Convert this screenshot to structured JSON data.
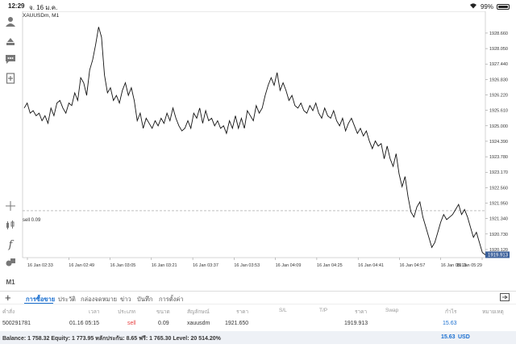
{
  "status_bar": {
    "time": "12:29",
    "date": "จ. 16 ม.ค.",
    "battery": "99%"
  },
  "chart": {
    "symbol": "XAUUSDm, M1",
    "sell_line_label": "sell 0.09",
    "timeframe": "M1",
    "price_ticks": [
      "1928.660",
      "1928.050",
      "1927.440",
      "1926.830",
      "1926.220",
      "1925.610",
      "1925.000",
      "1924.390",
      "1923.780",
      "1923.170",
      "1922.560",
      "1921.950",
      "1921.340",
      "1920.730",
      "1920.120"
    ],
    "current_price_label": "1919.913",
    "time_ticks": [
      "16 Jan 02:33",
      "16 Jan 02:49",
      "16 Jan 03:05",
      "16 Jan 03:21",
      "16 Jan 03:37",
      "16 Jan 03:53",
      "16 Jan 04:09",
      "16 Jan 04:25",
      "16 Jan 04:41",
      "16 Jan 04:57",
      "16 Jan 05:13",
      "16 Jan 05:29"
    ],
    "colors": {
      "line": "#111111",
      "grid": "#dddddd",
      "price_tag": "#3a5f9a"
    }
  },
  "chart_data": {
    "type": "line",
    "x_range": [
      "16 Jan 02:31",
      "16 Jan 05:29"
    ],
    "ylim": [
      1919.8,
      1929.2
    ],
    "sell_level": 1921.65,
    "series": [
      {
        "values": [
          1925.7,
          1925.9,
          1925.5,
          1925.6,
          1925.4,
          1925.5,
          1925.2,
          1925.4,
          1925.1,
          1925.7,
          1925.4,
          1925.9,
          1926.0,
          1925.7,
          1925.5,
          1925.9,
          1925.8,
          1926.3,
          1926.0,
          1926.9,
          1926.7,
          1926.2,
          1927.2,
          1927.6,
          1928.2,
          1928.9,
          1928.5,
          1927.0,
          1926.3,
          1926.5,
          1926.0,
          1926.2,
          1925.9,
          1926.4,
          1926.7,
          1926.2,
          1926.5,
          1926.0,
          1925.2,
          1925.5,
          1924.9,
          1925.3,
          1925.1,
          1924.9,
          1925.2,
          1925.0,
          1925.3,
          1925.1,
          1925.5,
          1925.2,
          1925.7,
          1925.3,
          1925.0,
          1924.8,
          1924.9,
          1925.2,
          1924.9,
          1925.5,
          1925.3,
          1925.7,
          1925.1,
          1925.6,
          1925.2,
          1925.3,
          1925.0,
          1925.2,
          1924.9,
          1925.0,
          1924.7,
          1925.2,
          1924.9,
          1925.4,
          1924.9,
          1925.3,
          1924.9,
          1925.6,
          1925.4,
          1925.2,
          1925.8,
          1925.5,
          1925.7,
          1926.2,
          1926.6,
          1926.9,
          1926.6,
          1927.1,
          1926.4,
          1926.7,
          1926.4,
          1926.0,
          1926.2,
          1925.8,
          1925.7,
          1925.9,
          1925.6,
          1925.5,
          1925.8,
          1925.6,
          1925.9,
          1925.5,
          1925.3,
          1925.7,
          1925.4,
          1925.3,
          1925.6,
          1925.2,
          1925.0,
          1925.3,
          1924.8,
          1925.1,
          1925.3,
          1925.0,
          1924.7,
          1924.9,
          1924.6,
          1924.8,
          1924.4,
          1924.1,
          1924.4,
          1924.2,
          1924.3,
          1923.7,
          1924.2,
          1923.7,
          1923.4,
          1923.9,
          1923.1,
          1922.6,
          1923.0,
          1922.2,
          1921.6,
          1921.4,
          1921.8,
          1922.0,
          1921.4,
          1921.0,
          1920.6,
          1920.2,
          1920.4,
          1920.8,
          1921.2,
          1921.5,
          1921.3,
          1921.4,
          1921.5,
          1921.7,
          1921.9,
          1921.5,
          1921.7,
          1921.4,
          1921.0,
          1920.6,
          1920.8,
          1920.4,
          1920.0,
          1919.913
        ]
      }
    ]
  },
  "toolbar": {
    "tabs": [
      "การซื้อขาย",
      "ประวัติ",
      "กล่องจดหมาย",
      "ข่าว",
      "บันทึก",
      "การตั้งค่า"
    ],
    "active_tab": 0
  },
  "table": {
    "headers": [
      "คำสั่ง",
      "เวลา",
      "ประเภท",
      "ขนาด",
      "สัญลักษณ์",
      "ราคา",
      "S/L",
      "T/P",
      "ราคา",
      "Swap",
      "กำไร",
      "หมายเหตุ"
    ],
    "row": {
      "order": "500291781",
      "time": "01.16 05:15",
      "type": "sell",
      "size": "0.09",
      "symbol": "xauusdm",
      "open_price": "1921.650",
      "sl": "",
      "tp": "",
      "current_price": "1919.913",
      "swap": "",
      "profit": "15.63",
      "comment": ""
    }
  },
  "balance_bar": {
    "text": "Balance: 1 758.32 Equity: 1 773.95 หลักประกัน: 8.65 ฟรี: 1 765.30 Level: 20 514.20%",
    "profit": "15.63",
    "currency": "USD"
  }
}
